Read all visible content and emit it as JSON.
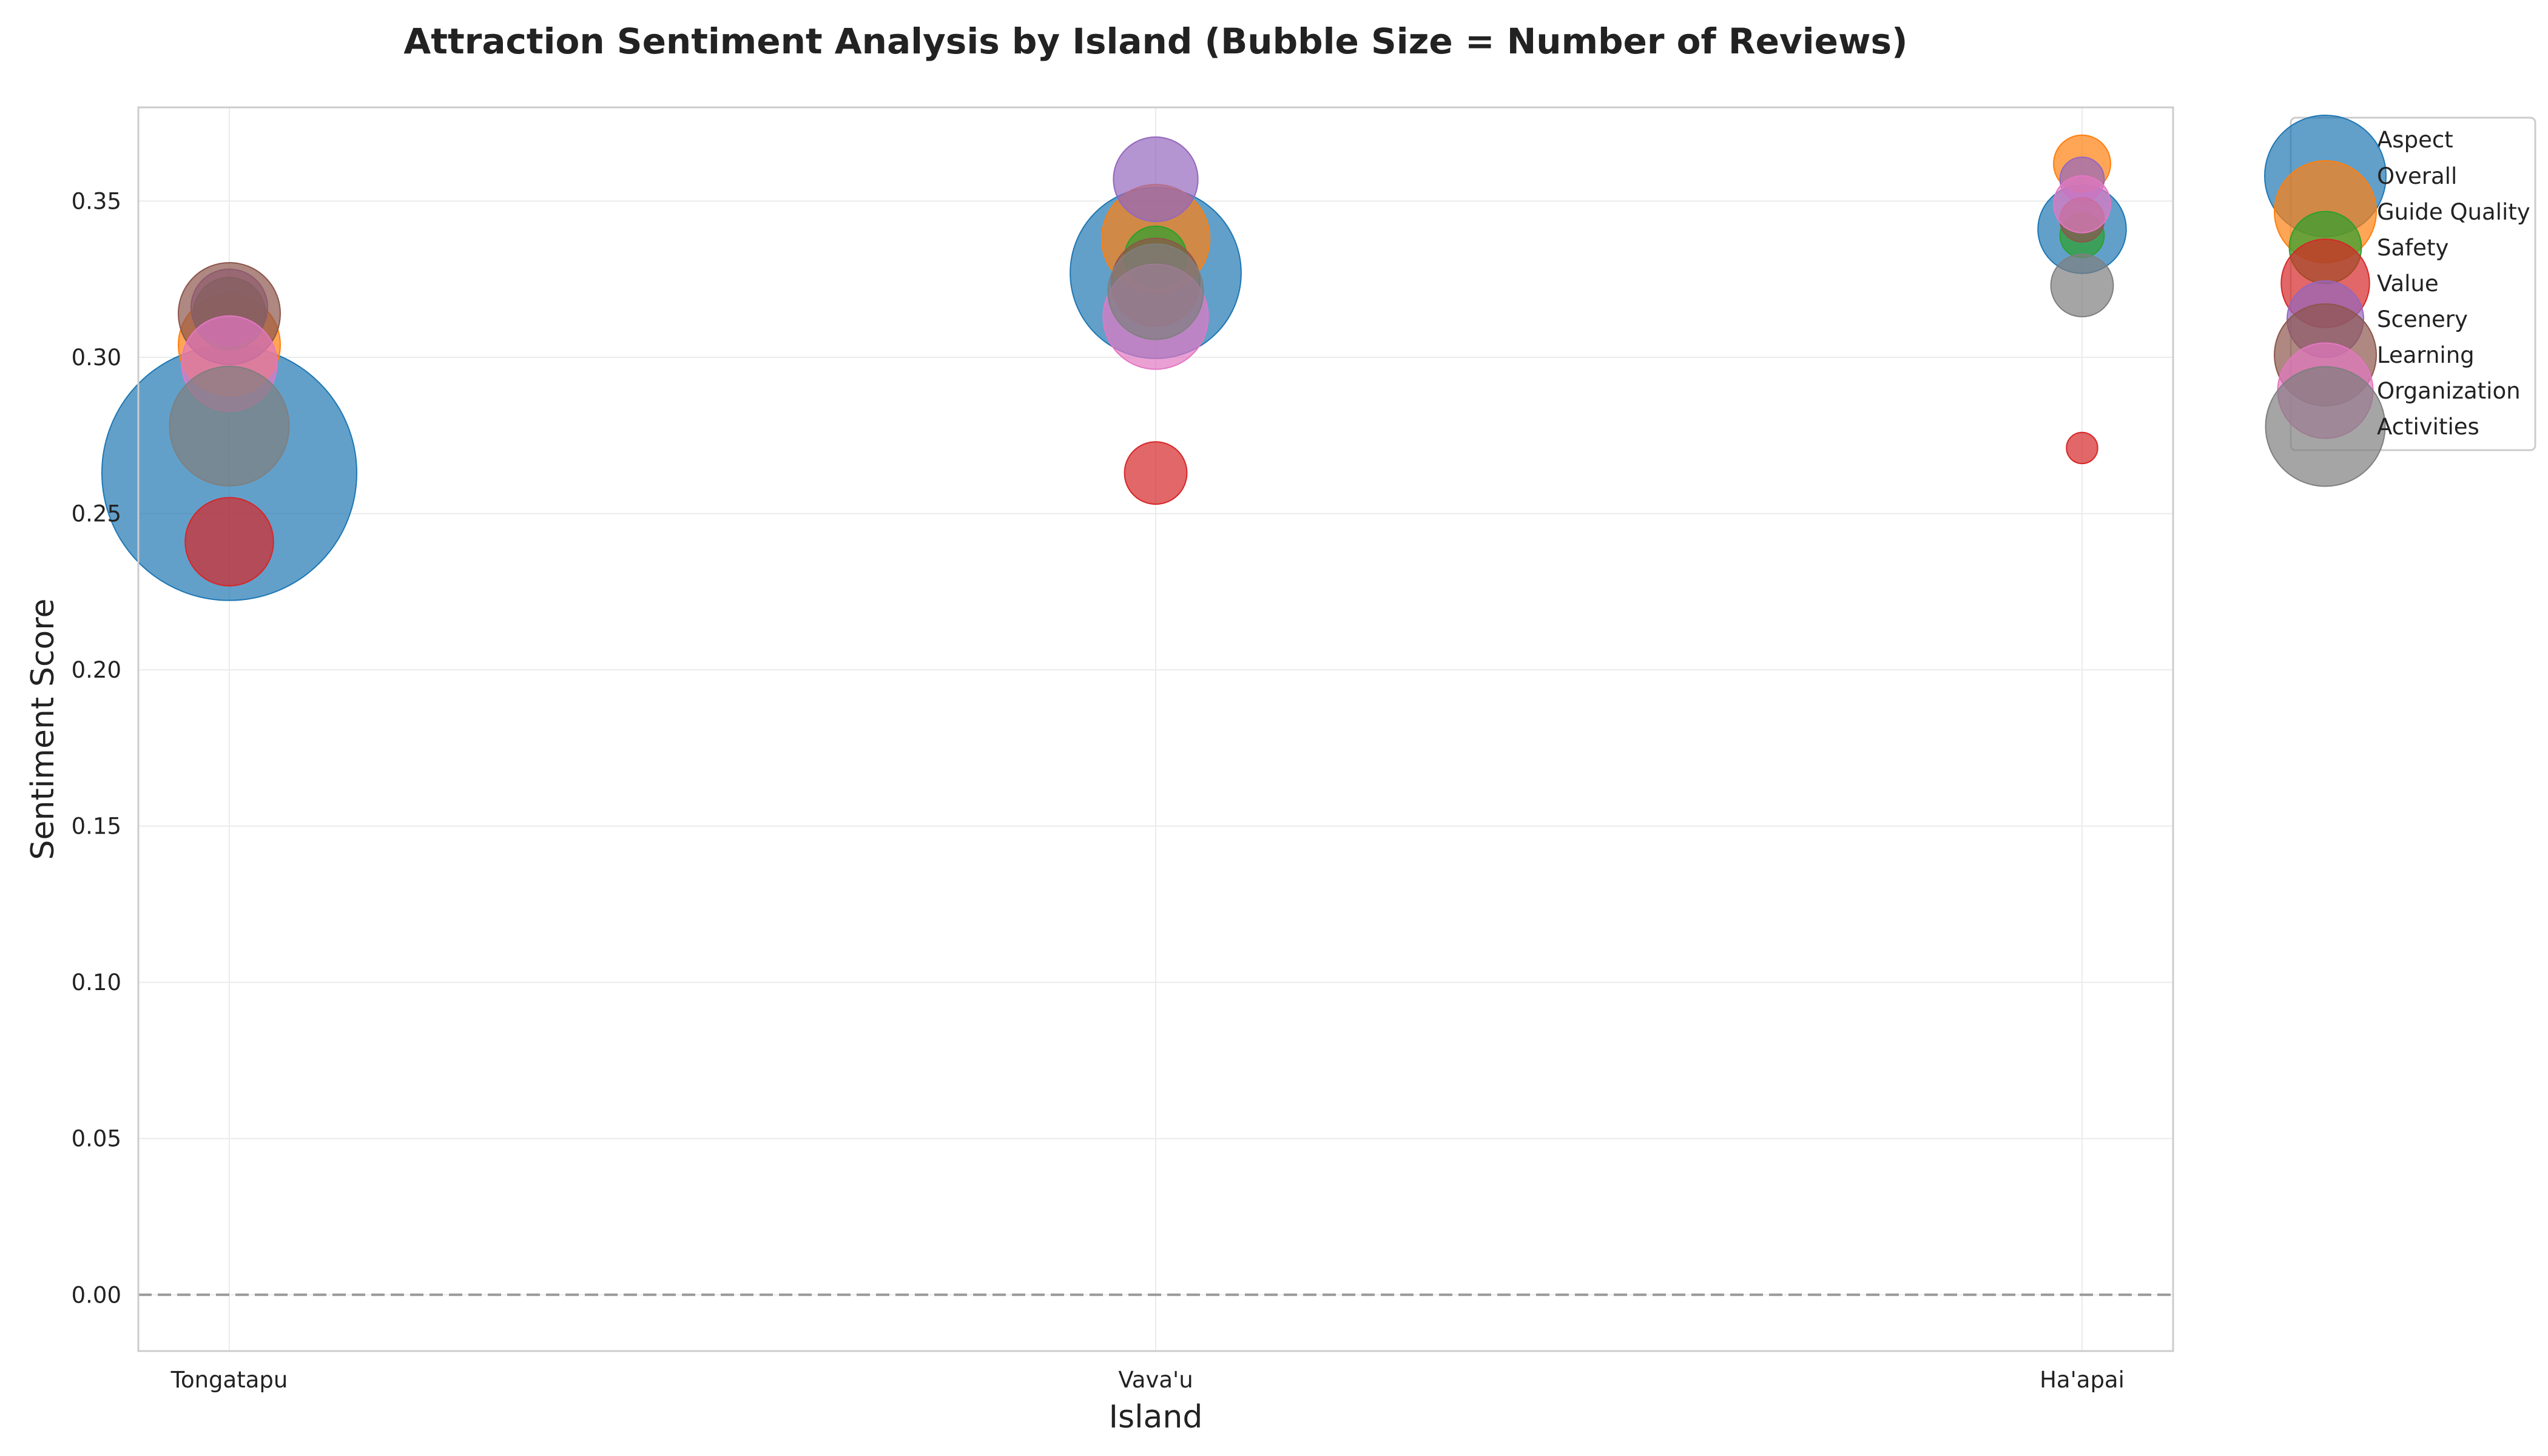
{
  "chart_data": {
    "type": "scatter",
    "title": "Attraction Sentiment Analysis by Island (Bubble Size = Number of Reviews)",
    "xlabel": "Island",
    "ylabel": "Sentiment Score",
    "categories": [
      "Tongatapu",
      "Vava'u",
      "Ha'apai"
    ],
    "ylim": [
      -0.018,
      0.38
    ],
    "yticks": [
      "0.00",
      "0.05",
      "0.10",
      "0.15",
      "0.20",
      "0.25",
      "0.30",
      "0.35"
    ],
    "grid": true,
    "reference_line": {
      "y": 0.0,
      "style": "dashed"
    },
    "legend": {
      "title": "Aspect",
      "placement": "outside-top-right"
    },
    "size_encoding": "Number of Reviews",
    "series": [
      {
        "name": "Overall",
        "color": "#1f77b4",
        "points": [
          {
            "x": "Tongatapu",
            "y": 0.263,
            "reviews": 100
          },
          {
            "x": "Vava'u",
            "y": 0.327,
            "reviews": 45
          },
          {
            "x": "Ha'apai",
            "y": 0.341,
            "reviews": 12
          }
        ]
      },
      {
        "name": "Guide Quality",
        "color": "#ff7f0e",
        "points": [
          {
            "x": "Tongatapu",
            "y": 0.304,
            "reviews": 16
          },
          {
            "x": "Vava'u",
            "y": 0.338,
            "reviews": 18
          },
          {
            "x": "Ha'apai",
            "y": 0.362,
            "reviews": 5
          }
        ]
      },
      {
        "name": "Safety",
        "color": "#2ca02c",
        "points": [
          {
            "x": "Tongatapu",
            "y": 0.314,
            "reviews": 8
          },
          {
            "x": "Vava'u",
            "y": 0.332,
            "reviews": 6
          },
          {
            "x": "Ha'apai",
            "y": 0.339,
            "reviews": 3
          }
        ]
      },
      {
        "name": "Value",
        "color": "#d62728",
        "points": [
          {
            "x": "Tongatapu",
            "y": 0.241,
            "reviews": 12
          },
          {
            "x": "Vava'u",
            "y": 0.263,
            "reviews": 6
          },
          {
            "x": "Ha'apai",
            "y": 0.271,
            "reviews": 1.5
          }
        ]
      },
      {
        "name": "Scenery",
        "color": "#9467bd",
        "points": [
          {
            "x": "Tongatapu",
            "y": 0.316,
            "reviews": 9
          },
          {
            "x": "Vava'u",
            "y": 0.357,
            "reviews": 11
          },
          {
            "x": "Ha'apai",
            "y": 0.357,
            "reviews": 3
          }
        ]
      },
      {
        "name": "Learning",
        "color": "#8c564b",
        "points": [
          {
            "x": "Tongatapu",
            "y": 0.314,
            "reviews": 16
          },
          {
            "x": "Vava'u",
            "y": 0.324,
            "reviews": 12
          },
          {
            "x": "Ha'apai",
            "y": 0.344,
            "reviews": 3
          }
        ]
      },
      {
        "name": "Organization",
        "color": "#e377c2",
        "points": [
          {
            "x": "Tongatapu",
            "y": 0.298,
            "reviews": 14
          },
          {
            "x": "Vava'u",
            "y": 0.313,
            "reviews": 17
          },
          {
            "x": "Ha'apai",
            "y": 0.349,
            "reviews": 5
          }
        ]
      },
      {
        "name": "Activities",
        "color": "#7f7f7f",
        "points": [
          {
            "x": "Tongatapu",
            "y": 0.278,
            "reviews": 22
          },
          {
            "x": "Vava'u",
            "y": 0.321,
            "reviews": 14
          },
          {
            "x": "Ha'apai",
            "y": 0.323,
            "reviews": 6
          }
        ]
      }
    ]
  }
}
